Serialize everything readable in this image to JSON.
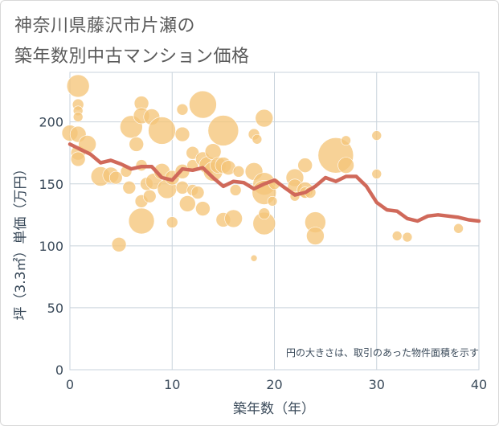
{
  "title_line1": "神奈川県藤沢市片瀬の",
  "title_line2": "築年数別中古マンション価格",
  "chart_data": {
    "type": "scatter",
    "xlabel": "築年数（年）",
    "ylabel": "坪（3.3㎡）単価（万円）",
    "xlim": [
      0,
      40
    ],
    "ylim": [
      0,
      240
    ],
    "x_ticks": [
      "0",
      "10",
      "20",
      "30",
      "40"
    ],
    "y_ticks": [
      "0",
      "50",
      "100",
      "150",
      "200"
    ],
    "annotation": "円の大きさは、取引のあった物件面積を示す",
    "colors": {
      "bubble": "#f5c57a",
      "line": "#d0695a",
      "grid": "#c9d3dc",
      "axis_text": "#3a4a5a"
    },
    "bubbles": [
      {
        "x": 0,
        "y": 191,
        "s": 10
      },
      {
        "x": 0.8,
        "y": 229,
        "s": 14
      },
      {
        "x": 0.8,
        "y": 214,
        "s": 7
      },
      {
        "x": 0.8,
        "y": 209,
        "s": 6
      },
      {
        "x": 0.8,
        "y": 204,
        "s": 6
      },
      {
        "x": 0.8,
        "y": 190,
        "s": 10
      },
      {
        "x": 0.8,
        "y": 175,
        "s": 9
      },
      {
        "x": 0.8,
        "y": 170,
        "s": 9
      },
      {
        "x": 1.7,
        "y": 182,
        "s": 11
      },
      {
        "x": 3,
        "y": 156,
        "s": 12
      },
      {
        "x": 4,
        "y": 157,
        "s": 10
      },
      {
        "x": 4.5,
        "y": 155,
        "s": 8
      },
      {
        "x": 4.8,
        "y": 101,
        "s": 9
      },
      {
        "x": 5.5,
        "y": 160,
        "s": 7
      },
      {
        "x": 5.8,
        "y": 147,
        "s": 8
      },
      {
        "x": 6,
        "y": 196,
        "s": 14
      },
      {
        "x": 6.5,
        "y": 182,
        "s": 9
      },
      {
        "x": 7,
        "y": 215,
        "s": 9
      },
      {
        "x": 7,
        "y": 205,
        "s": 10
      },
      {
        "x": 7,
        "y": 165,
        "s": 7
      },
      {
        "x": 7,
        "y": 136,
        "s": 8
      },
      {
        "x": 7,
        "y": 120,
        "s": 16
      },
      {
        "x": 7.5,
        "y": 150,
        "s": 8
      },
      {
        "x": 7.8,
        "y": 140,
        "s": 8
      },
      {
        "x": 8,
        "y": 204,
        "s": 10
      },
      {
        "x": 8.2,
        "y": 152,
        "s": 10
      },
      {
        "x": 9,
        "y": 193,
        "s": 17
      },
      {
        "x": 9,
        "y": 160,
        "s": 10
      },
      {
        "x": 9.5,
        "y": 146,
        "s": 12
      },
      {
        "x": 10,
        "y": 119,
        "s": 7
      },
      {
        "x": 10,
        "y": 155,
        "s": 9
      },
      {
        "x": 11,
        "y": 210,
        "s": 7
      },
      {
        "x": 11,
        "y": 190,
        "s": 9
      },
      {
        "x": 11,
        "y": 160,
        "s": 9
      },
      {
        "x": 11,
        "y": 147,
        "s": 8
      },
      {
        "x": 11.5,
        "y": 134,
        "s": 10
      },
      {
        "x": 12,
        "y": 175,
        "s": 8
      },
      {
        "x": 12,
        "y": 165,
        "s": 7
      },
      {
        "x": 12,
        "y": 145,
        "s": 7
      },
      {
        "x": 12.5,
        "y": 143,
        "s": 8
      },
      {
        "x": 13,
        "y": 214,
        "s": 17
      },
      {
        "x": 13,
        "y": 170,
        "s": 9
      },
      {
        "x": 13,
        "y": 130,
        "s": 9
      },
      {
        "x": 13.5,
        "y": 165,
        "s": 11
      },
      {
        "x": 14,
        "y": 176,
        "s": 10
      },
      {
        "x": 14,
        "y": 160,
        "s": 12
      },
      {
        "x": 14.5,
        "y": 165,
        "s": 10
      },
      {
        "x": 15,
        "y": 193,
        "s": 19
      },
      {
        "x": 15,
        "y": 165,
        "s": 10
      },
      {
        "x": 15,
        "y": 121,
        "s": 9
      },
      {
        "x": 15.5,
        "y": 163,
        "s": 9
      },
      {
        "x": 16,
        "y": 122,
        "s": 11
      },
      {
        "x": 16.2,
        "y": 145,
        "s": 7
      },
      {
        "x": 16.5,
        "y": 160,
        "s": 7
      },
      {
        "x": 18,
        "y": 190,
        "s": 7
      },
      {
        "x": 18,
        "y": 160,
        "s": 11
      },
      {
        "x": 18,
        "y": 90,
        "s": 4
      },
      {
        "x": 18.3,
        "y": 186,
        "s": 6
      },
      {
        "x": 19,
        "y": 203,
        "s": 11
      },
      {
        "x": 19,
        "y": 150,
        "s": 14
      },
      {
        "x": 19,
        "y": 143,
        "s": 15
      },
      {
        "x": 19,
        "y": 118,
        "s": 14
      },
      {
        "x": 19,
        "y": 126,
        "s": 7
      },
      {
        "x": 19.8,
        "y": 136,
        "s": 6
      },
      {
        "x": 20,
        "y": 150,
        "s": 7
      },
      {
        "x": 22,
        "y": 155,
        "s": 11
      },
      {
        "x": 22,
        "y": 148,
        "s": 9
      },
      {
        "x": 22,
        "y": 140,
        "s": 6
      },
      {
        "x": 23,
        "y": 165,
        "s": 9
      },
      {
        "x": 23,
        "y": 145,
        "s": 10
      },
      {
        "x": 23,
        "y": 143,
        "s": 7
      },
      {
        "x": 23.5,
        "y": 143,
        "s": 7
      },
      {
        "x": 24,
        "y": 119,
        "s": 13
      },
      {
        "x": 24,
        "y": 108,
        "s": 11
      },
      {
        "x": 26,
        "y": 173,
        "s": 22
      },
      {
        "x": 27,
        "y": 185,
        "s": 6
      },
      {
        "x": 27,
        "y": 165,
        "s": 10
      },
      {
        "x": 30,
        "y": 189,
        "s": 6
      },
      {
        "x": 30,
        "y": 158,
        "s": 6
      },
      {
        "x": 32,
        "y": 108,
        "s": 6
      },
      {
        "x": 33,
        "y": 107,
        "s": 6
      },
      {
        "x": 38,
        "y": 114,
        "s": 6
      }
    ],
    "trend": [
      {
        "x": 0,
        "y": 182
      },
      {
        "x": 1,
        "y": 178
      },
      {
        "x": 2,
        "y": 174
      },
      {
        "x": 3,
        "y": 167
      },
      {
        "x": 4,
        "y": 169
      },
      {
        "x": 5,
        "y": 166
      },
      {
        "x": 6,
        "y": 162
      },
      {
        "x": 7,
        "y": 164
      },
      {
        "x": 8,
        "y": 164
      },
      {
        "x": 9,
        "y": 155
      },
      {
        "x": 10,
        "y": 153
      },
      {
        "x": 11,
        "y": 162
      },
      {
        "x": 12,
        "y": 161
      },
      {
        "x": 13,
        "y": 163
      },
      {
        "x": 14,
        "y": 155
      },
      {
        "x": 15,
        "y": 148
      },
      {
        "x": 16,
        "y": 152
      },
      {
        "x": 17,
        "y": 151
      },
      {
        "x": 18,
        "y": 146
      },
      {
        "x": 19,
        "y": 150
      },
      {
        "x": 20,
        "y": 153
      },
      {
        "x": 21,
        "y": 147
      },
      {
        "x": 22,
        "y": 141
      },
      {
        "x": 23,
        "y": 143
      },
      {
        "x": 24,
        "y": 148
      },
      {
        "x": 25,
        "y": 155
      },
      {
        "x": 26,
        "y": 152
      },
      {
        "x": 27,
        "y": 156
      },
      {
        "x": 28,
        "y": 156
      },
      {
        "x": 29,
        "y": 148
      },
      {
        "x": 30,
        "y": 135
      },
      {
        "x": 31,
        "y": 129
      },
      {
        "x": 32,
        "y": 128
      },
      {
        "x": 33,
        "y": 122
      },
      {
        "x": 34,
        "y": 120
      },
      {
        "x": 35,
        "y": 124
      },
      {
        "x": 36,
        "y": 125
      },
      {
        "x": 37,
        "y": 124
      },
      {
        "x": 38,
        "y": 123
      },
      {
        "x": 39,
        "y": 121
      },
      {
        "x": 40,
        "y": 120
      }
    ]
  }
}
